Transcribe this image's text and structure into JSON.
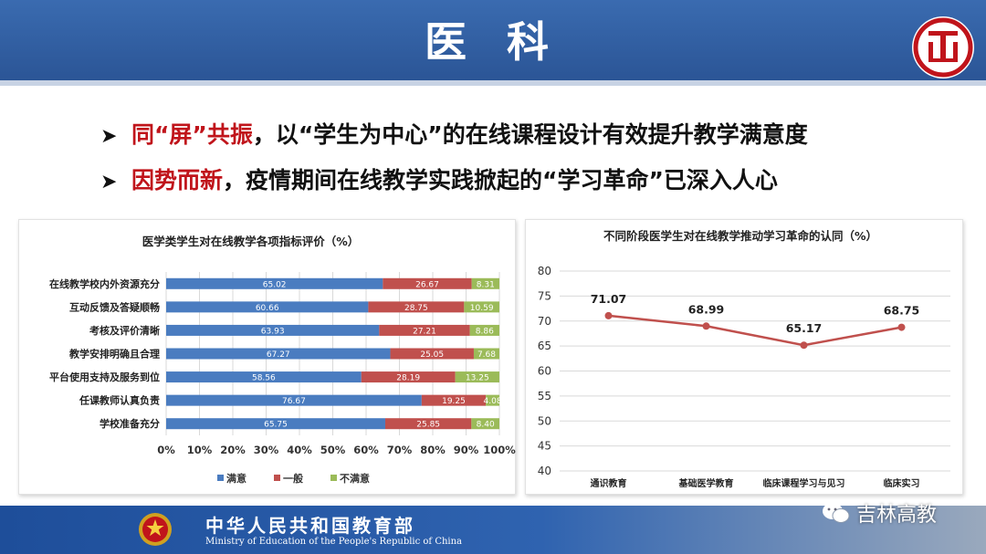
{
  "page": {
    "title": "医 科",
    "bullets": [
      {
        "highlight": "同“屏”共振",
        "rest": "，以“学生为中心”的在线课程设计有效提升教学满意度"
      },
      {
        "highlight": "因势而新",
        "rest": "，疫情期间在线教学实践掀起的“学习革命”已深入人心"
      }
    ],
    "arrow_glyph": "➤",
    "footer": {
      "ministry_cn": "中华人民共和国教育部",
      "ministry_en": "Ministry of Education of the People's Republic of China",
      "watermark": "吉林高教"
    },
    "colors": {
      "header": "#2e5b9e",
      "highlight": "#c0141b"
    }
  },
  "chart_data": [
    {
      "type": "bar",
      "orientation": "horizontal",
      "stacked": true,
      "title": "医学类学生对在线教学各项指标评价（%）",
      "categories": [
        "在线教学校内外资源充分",
        "互动反馈及答疑顺畅",
        "考核及评价清晰",
        "教学安排明确且合理",
        "平台使用支持及服务到位",
        "任课教师认真负责",
        "学校准备充分"
      ],
      "series": [
        {
          "name": "满意",
          "color": "#4a7cc0",
          "values": [
            65.02,
            60.66,
            63.93,
            67.27,
            58.56,
            76.67,
            65.75
          ],
          "labels": [
            "65.02",
            "60.66",
            "63.93",
            "67.27",
            "58.56",
            "76.67",
            "65.75"
          ]
        },
        {
          "name": "一般",
          "color": "#c0504d",
          "values": [
            26.67,
            28.75,
            27.21,
            25.05,
            28.19,
            19.25,
            25.85
          ],
          "labels": [
            "26.67",
            "28.75",
            "27.21",
            "25.05",
            "28.19",
            "19.25",
            "25.85"
          ]
        },
        {
          "name": "不满意",
          "color": "#9bbb59",
          "values": [
            8.31,
            10.59,
            8.86,
            7.68,
            13.25,
            4.08,
            8.4
          ],
          "labels": [
            "8.31",
            "10.59",
            "8.86",
            "7.68",
            "13.25",
            "4.08",
            "8.40"
          ]
        }
      ],
      "xlim": [
        0,
        100
      ],
      "xticks": [
        "0%",
        "10%",
        "20%",
        "30%",
        "40%",
        "50%",
        "60%",
        "70%",
        "80%",
        "90%",
        "100%"
      ],
      "legend": "bottom",
      "grid": true
    },
    {
      "type": "line",
      "title": "不同阶段医学生对在线教学推动学习革命的认同（%）",
      "categories": [
        "通识教育",
        "基础医学教育",
        "临床课程学习与见习",
        "临床实习"
      ],
      "series": [
        {
          "color": "#c0504d",
          "values": [
            71.07,
            68.99,
            65.17,
            68.75
          ],
          "labels": [
            "71.07",
            "68.99",
            "65.17",
            "68.75"
          ]
        }
      ],
      "ylim": [
        40,
        80
      ],
      "yticks": [
        "40",
        "45",
        "50",
        "55",
        "60",
        "65",
        "70",
        "75",
        "80"
      ],
      "grid": true
    }
  ]
}
